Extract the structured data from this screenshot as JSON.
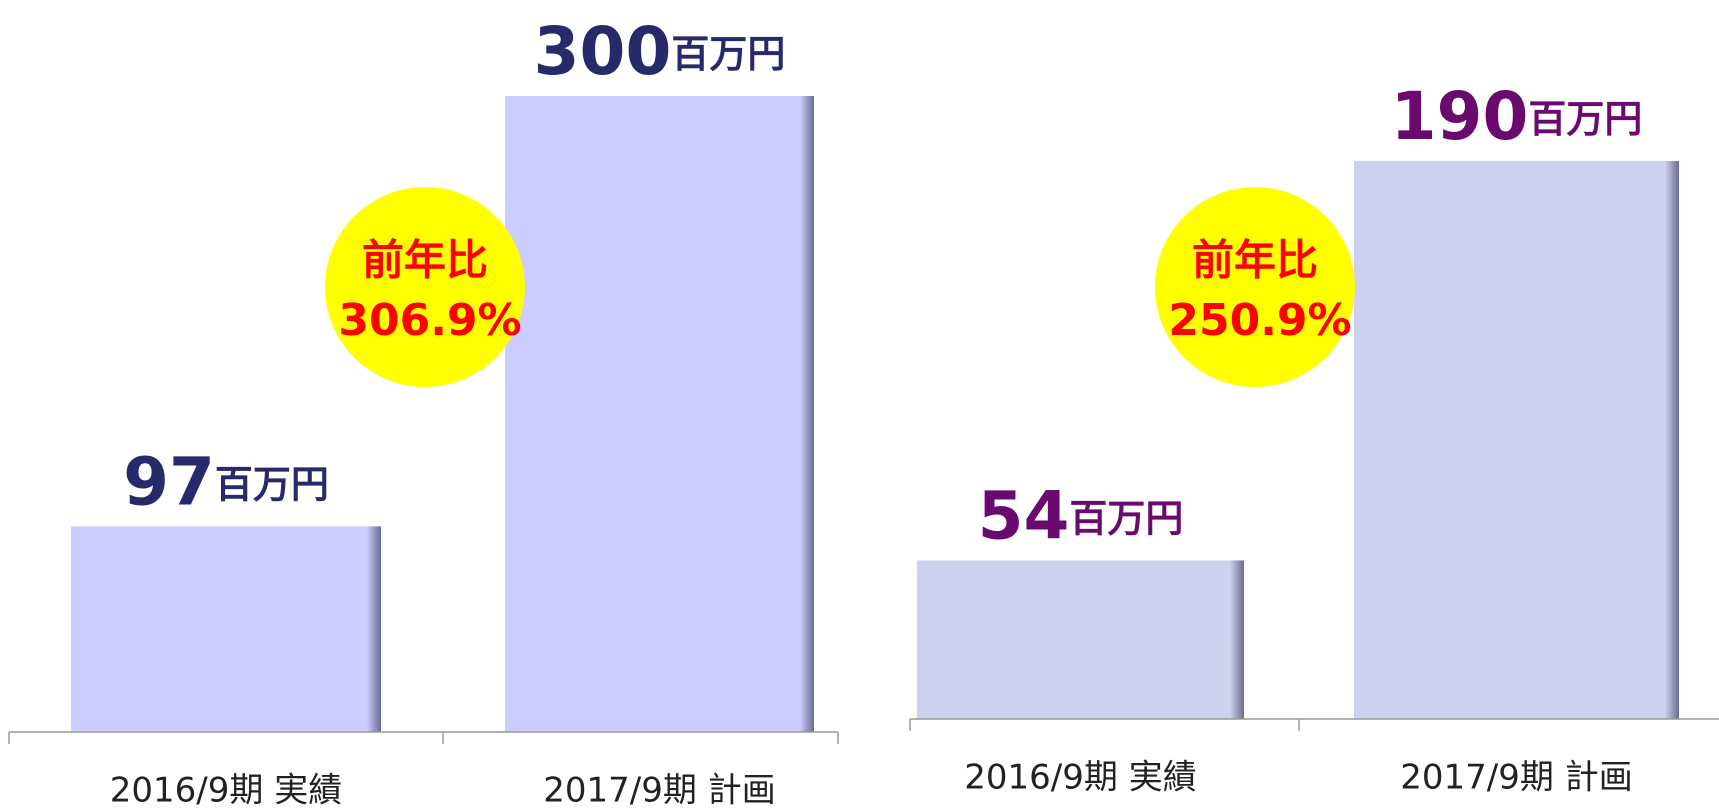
{
  "chart_data": [
    {
      "type": "bar",
      "categories": [
        "2016/9期 実績",
        "2017/9期 計画"
      ],
      "values": [
        97,
        300
      ],
      "unit": "百万円",
      "color": "#ccccff",
      "label_color": "#262a6b",
      "annotation": [
        "前年比",
        "306.9%"
      ]
    },
    {
      "type": "bar",
      "categories": [
        "2016/9期 実績",
        "2017/9期 計画"
      ],
      "values": [
        54,
        190
      ],
      "unit": "百万円",
      "color": "#cdd0ee",
      "label_color": "#6a0a6e",
      "annotation": [
        "前年比",
        "250.9%"
      ]
    }
  ]
}
